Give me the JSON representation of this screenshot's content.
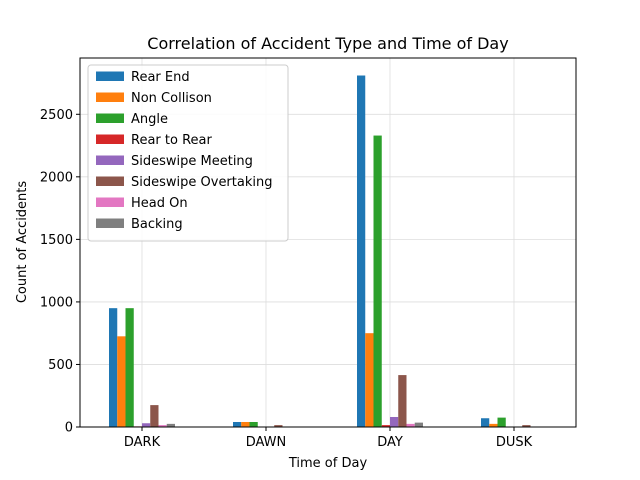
{
  "chart_data": {
    "type": "bar",
    "title": "Correlation of Accident Type and Time of Day",
    "xlabel": "Time of Day",
    "ylabel": "Count of Accidents",
    "categories": [
      "DARK",
      "DAWN",
      "DAY",
      "DUSK"
    ],
    "ylim": [
      0,
      2950
    ],
    "yticks": [
      0,
      500,
      1000,
      1500,
      2000,
      2500
    ],
    "grid": true,
    "legend_position": "upper-left",
    "series": [
      {
        "name": "Rear End",
        "color": "#1f77b4",
        "values": [
          950,
          40,
          2810,
          70
        ]
      },
      {
        "name": "Non Collison",
        "color": "#ff7f0e",
        "values": [
          725,
          40,
          750,
          25
        ]
      },
      {
        "name": "Angle",
        "color": "#2ca02c",
        "values": [
          950,
          40,
          2330,
          75
        ]
      },
      {
        "name": "Rear to Rear",
        "color": "#d62728",
        "values": [
          5,
          0,
          15,
          2
        ]
      },
      {
        "name": "Sideswipe Meeting",
        "color": "#9467bd",
        "values": [
          30,
          2,
          80,
          3
        ]
      },
      {
        "name": "Sideswipe Overtaking",
        "color": "#8c564b",
        "values": [
          175,
          15,
          415,
          15
        ]
      },
      {
        "name": "Head On",
        "color": "#e377c2",
        "values": [
          15,
          2,
          25,
          3
        ]
      },
      {
        "name": "Backing",
        "color": "#7f7f7f",
        "values": [
          25,
          2,
          35,
          3
        ]
      }
    ]
  }
}
